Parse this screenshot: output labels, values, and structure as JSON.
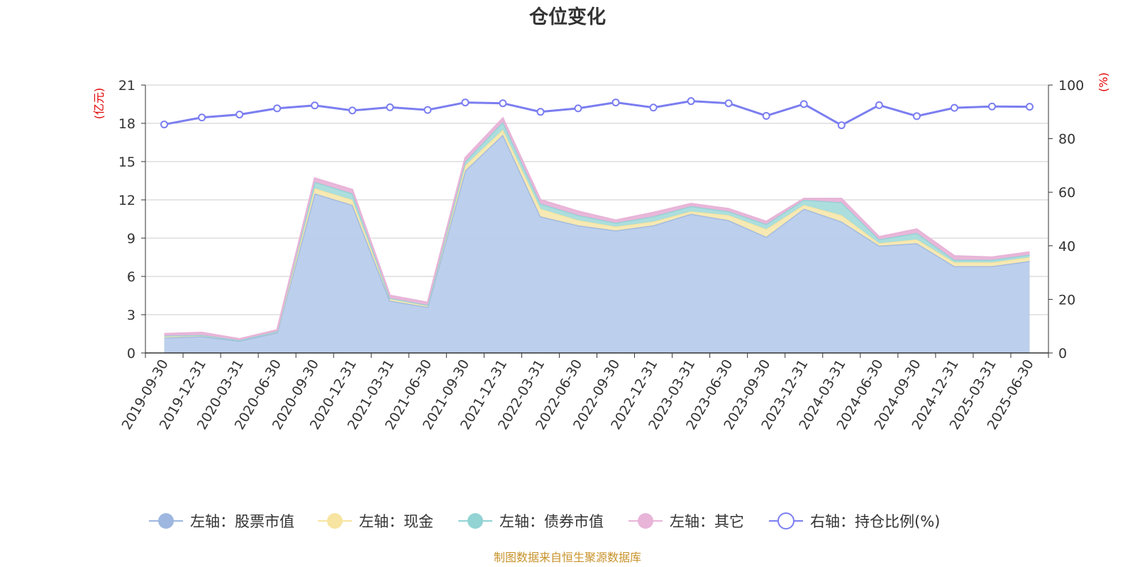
{
  "chart_data": {
    "type": "area",
    "title": "仓位变化",
    "left_axis_unit": "(亿元)",
    "right_axis_unit": "(%)",
    "ylim_left": [
      0,
      21
    ],
    "yticks_left": [
      0,
      3,
      6,
      9,
      12,
      15,
      18,
      21
    ],
    "ylim_right": [
      0,
      100
    ],
    "yticks_right": [
      0,
      20,
      40,
      60,
      80,
      100
    ],
    "categories": [
      "2019-09-30",
      "2019-12-31",
      "2020-03-31",
      "2020-06-30",
      "2020-09-30",
      "2020-12-31",
      "2021-03-31",
      "2021-06-30",
      "2021-09-30",
      "2021-12-31",
      "2022-03-31",
      "2022-06-30",
      "2022-09-30",
      "2022-12-31",
      "2023-03-31",
      "2023-06-30",
      "2023-09-30",
      "2023-12-31",
      "2024-03-31",
      "2024-06-30",
      "2024-09-30",
      "2024-12-31",
      "2025-03-31",
      "2025-06-30"
    ],
    "stacked": true,
    "series": [
      {
        "name": "左轴：股票市值",
        "axis": "left",
        "type": "area",
        "color": "#9db7e0",
        "fill": "#b8cceb",
        "values": [
          1.2,
          1.3,
          0.95,
          1.6,
          12.5,
          11.6,
          4.1,
          3.6,
          14.3,
          17.1,
          10.7,
          10.0,
          9.6,
          10.0,
          10.9,
          10.4,
          9.1,
          11.3,
          10.3,
          8.4,
          8.6,
          6.8,
          6.8,
          7.2
        ]
      },
      {
        "name": "左轴：现金",
        "axis": "left",
        "type": "area",
        "color": "#f7e4a0",
        "fill": "#f7e8b0",
        "values": [
          0.15,
          0.1,
          0.05,
          0.1,
          0.4,
          0.4,
          0.2,
          0.15,
          0.4,
          0.4,
          0.6,
          0.4,
          0.3,
          0.3,
          0.2,
          0.4,
          0.6,
          0.3,
          0.5,
          0.2,
          0.3,
          0.3,
          0.3,
          0.3
        ]
      },
      {
        "name": "左轴：债券市值",
        "axis": "left",
        "type": "area",
        "color": "#92d3d4",
        "fill": "#a8dcdc",
        "values": [
          0.0,
          0.0,
          0.0,
          0.0,
          0.5,
          0.5,
          0.0,
          0.0,
          0.3,
          0.6,
          0.4,
          0.4,
          0.3,
          0.4,
          0.4,
          0.3,
          0.4,
          0.4,
          1.0,
          0.3,
          0.5,
          0.2,
          0.2,
          0.2
        ]
      },
      {
        "name": "左轴：其它",
        "axis": "left",
        "type": "area",
        "color": "#e8b4d8",
        "fill": "#e8b4d8",
        "values": [
          0.15,
          0.2,
          0.1,
          0.1,
          0.3,
          0.3,
          0.2,
          0.2,
          0.3,
          0.3,
          0.3,
          0.3,
          0.2,
          0.3,
          0.2,
          0.2,
          0.2,
          0.1,
          0.3,
          0.2,
          0.3,
          0.3,
          0.2,
          0.2
        ]
      },
      {
        "name": "右轴：持仓比例(%)",
        "axis": "right",
        "type": "line",
        "color": "#7b7ef0",
        "values": [
          85.3,
          87.9,
          89.0,
          91.3,
          92.4,
          90.5,
          91.7,
          90.7,
          93.5,
          93.2,
          90.0,
          91.3,
          93.5,
          91.6,
          94.0,
          93.2,
          88.5,
          92.9,
          85.0,
          92.5,
          88.4,
          91.5,
          92.0,
          91.9
        ]
      }
    ],
    "legend_position": "bottom",
    "grid": true
  },
  "source_text": "制图数据来自恒生聚源数据库"
}
